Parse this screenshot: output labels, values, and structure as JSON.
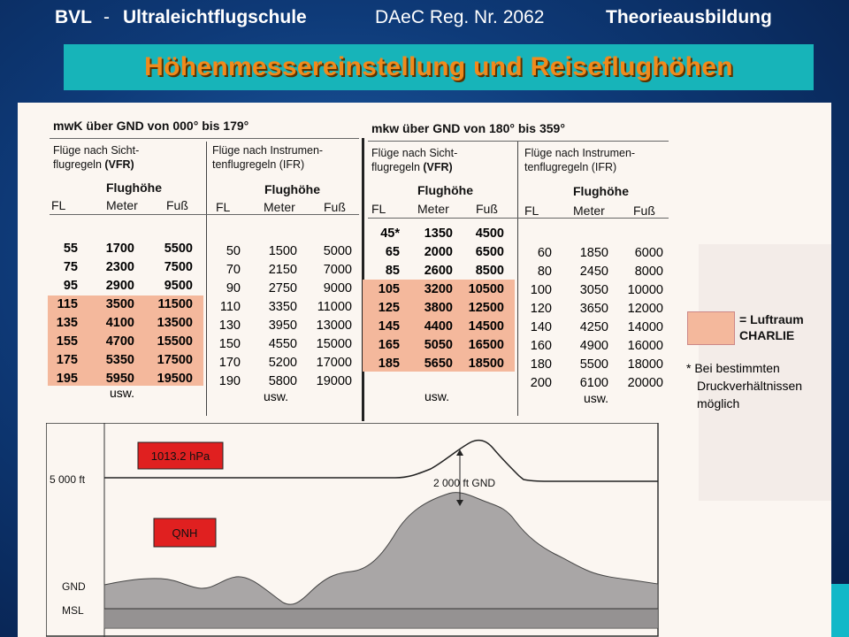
{
  "header": {
    "org": "BVL",
    "sep": "-",
    "school": "Ultraleichtflugschule",
    "reg": "DAeC Reg. Nr. 2062",
    "course": "Theorieausbildung"
  },
  "title": "Höhenmessereinstellung und Reiseflughöhen",
  "table": {
    "left_header": "mwK über GND von 000° bis 179°",
    "right_header": "mkw über GND von 180° bis 359°",
    "vfr_label_line1": "Flüge nach Sicht-",
    "vfr_label_line2_prefix": "flugregeln ",
    "vfr_label_line2_abbr": "(VFR)",
    "ifr_label_line1": "Flüge nach Instrumen-",
    "ifr_label_line2": "tenflugregeln (IFR)",
    "flughoehe": "Flughöhe",
    "fl": "FL",
    "meter": "Meter",
    "fuss": "Fuß",
    "usw": "usw.",
    "east_vfr": {
      "fl": [
        "55",
        "75",
        "95",
        "115",
        "135",
        "155",
        "175",
        "195"
      ],
      "m": [
        "1700",
        "2300",
        "2900",
        "3500",
        "4100",
        "4700",
        "5350",
        "5950"
      ],
      "ft": [
        "5500",
        "7500",
        "9500",
        "11500",
        "13500",
        "15500",
        "17500",
        "19500"
      ]
    },
    "east_ifr": {
      "fl": [
        "50",
        "70",
        "90",
        "110",
        "130",
        "150",
        "170",
        "190"
      ],
      "m": [
        "1500",
        "2150",
        "2750",
        "3350",
        "3950",
        "4550",
        "5200",
        "5800"
      ],
      "ft": [
        "5000",
        "7000",
        "9000",
        "11000",
        "13000",
        "15000",
        "17000",
        "19000"
      ]
    },
    "west_vfr": {
      "fl": [
        "45*",
        "65",
        "85",
        "105",
        "125",
        "145",
        "165",
        "185"
      ],
      "m": [
        "1350",
        "2000",
        "2600",
        "3200",
        "3800",
        "4400",
        "5050",
        "5650"
      ],
      "ft": [
        "4500",
        "6500",
        "8500",
        "10500",
        "12500",
        "14500",
        "16500",
        "18500"
      ]
    },
    "west_ifr": {
      "fl": [
        "60",
        "80",
        "100",
        "120",
        "140",
        "160",
        "180",
        "200"
      ],
      "m": [
        "1850",
        "2450",
        "3050",
        "3650",
        "4250",
        "4900",
        "5500",
        "6100"
      ],
      "ft": [
        "6000",
        "8000",
        "10000",
        "12000",
        "14000",
        "16000",
        "18000",
        "20000"
      ]
    }
  },
  "legend": {
    "line1": "= Luftraum",
    "line2": "CHARLIE",
    "color": "#f4b89c"
  },
  "footnote": {
    "line1": "* Bei bestimmten",
    "line2": "Druckverhältnissen",
    "line3": "möglich"
  },
  "diagram": {
    "std_pressure": "1013.2 hPa",
    "qnh": "QNH",
    "altitude_5000": "5 000 ft",
    "gnd_offset": "2 000 ft GND",
    "gnd": "GND",
    "msl": "MSL"
  },
  "colors": {
    "title_bg": "#17b4b9",
    "title_text": "#f08a1c",
    "label_red": "#e02020",
    "terrain": "#a9a6a6"
  }
}
